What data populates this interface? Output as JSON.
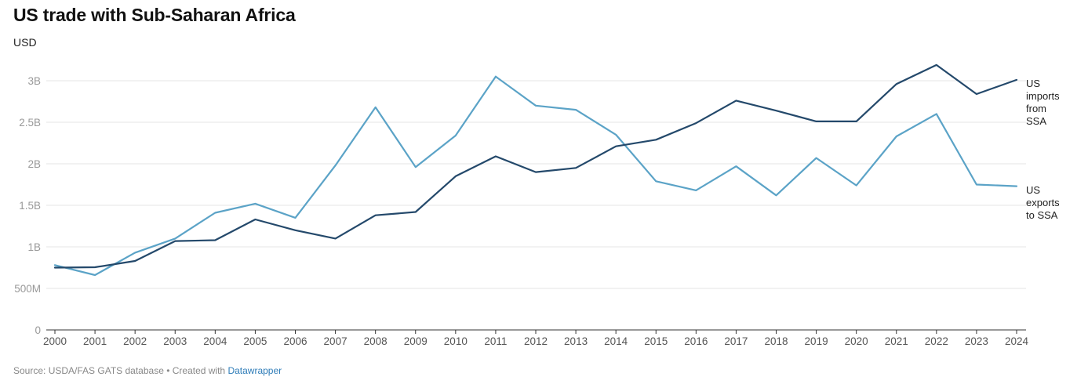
{
  "title": "US trade with Sub-Saharan Africa",
  "unit_label": "USD",
  "footer": {
    "prefix": "Source: USDA/FAS GATS database • Created with ",
    "link_text": "Datawrapper"
  },
  "colors": {
    "imports": "#24496b",
    "exports": "#5ba3c7",
    "grid": "#e6e6e6",
    "axis": "#333333"
  },
  "chart_data": {
    "type": "line",
    "title": "US trade with Sub-Saharan Africa",
    "ylabel": "USD",
    "xlabel": "",
    "ylim": [
      0,
      3000000000
    ],
    "grid": true,
    "y_ticks": [
      {
        "value": 0,
        "label": "0"
      },
      {
        "value": 500000000,
        "label": "500M"
      },
      {
        "value": 1000000000,
        "label": "1B"
      },
      {
        "value": 1500000000,
        "label": "1.5B"
      },
      {
        "value": 2000000000,
        "label": "2B"
      },
      {
        "value": 2500000000,
        "label": "2.5B"
      },
      {
        "value": 3000000000,
        "label": "3B"
      }
    ],
    "x": [
      "2000",
      "2001",
      "2002",
      "2003",
      "2004",
      "2005",
      "2006",
      "2007",
      "2008",
      "2009",
      "2010",
      "2011",
      "2012",
      "2013",
      "2014",
      "2015",
      "2016",
      "2017",
      "2018",
      "2019",
      "2020",
      "2021",
      "2022",
      "2023",
      "2024"
    ],
    "series": [
      {
        "name": "US imports from SSA",
        "label_lines": [
          "US",
          "imports",
          "from",
          "SSA"
        ],
        "color": "#24496b",
        "values": [
          750000000,
          755000000,
          830000000,
          1070000000,
          1080000000,
          1330000000,
          1200000000,
          1100000000,
          1380000000,
          1420000000,
          1850000000,
          2090000000,
          1900000000,
          1950000000,
          2210000000,
          2290000000,
          2490000000,
          2760000000,
          2640000000,
          2510000000,
          2510000000,
          2960000000,
          3190000000,
          2840000000,
          3010000000
        ]
      },
      {
        "name": "US exports to SSA",
        "label_lines": [
          "US",
          "exports",
          "to SSA"
        ],
        "color": "#5ba3c7",
        "values": [
          780000000,
          660000000,
          930000000,
          1100000000,
          1410000000,
          1520000000,
          1350000000,
          1980000000,
          2680000000,
          1960000000,
          2340000000,
          3050000000,
          2700000000,
          2650000000,
          2350000000,
          1790000000,
          1680000000,
          1970000000,
          1620000000,
          2070000000,
          1740000000,
          2330000000,
          2600000000,
          1750000000,
          1730000000
        ]
      }
    ]
  }
}
